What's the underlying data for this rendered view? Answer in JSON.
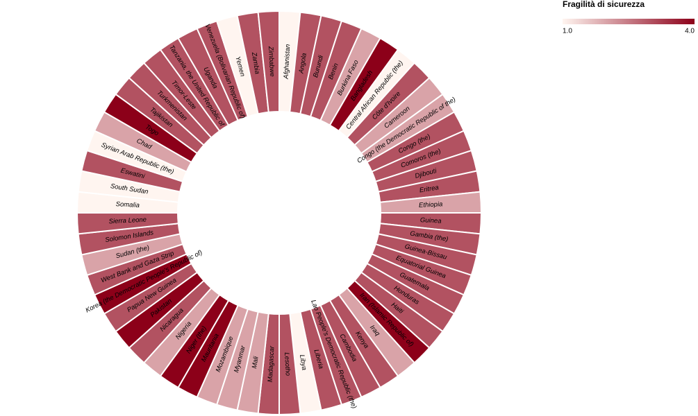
{
  "chart_data": {
    "type": "donut",
    "legend_title": "Fragilità di sicurezza",
    "clim": [
      1,
      4
    ],
    "cticks": [
      {
        "value": 1,
        "label": "1.0"
      },
      {
        "value": 4,
        "label": "4.0"
      }
    ],
    "color_range": [
      "#fff5f0",
      "#8c0019"
    ],
    "categories": [
      "Afghanistan",
      "Angola",
      "Burundi",
      "Benin",
      "Burkina Faso",
      "Bangladesh",
      "Central African Republic (the)",
      "Côte d'Ivoire",
      "Cameroon",
      "Congo (the Democratic Republic of the)",
      "Congo (the)",
      "Comoros (the)",
      "Djibouti",
      "Eritrea",
      "Ethiopia",
      "Guinea",
      "Gambia (the)",
      "Guinea-Bissau",
      "Equatorial Guinea",
      "Guatemala",
      "Honduras",
      "Haiti",
      "Iran (Islamic Republic of)",
      "Iraq",
      "Kenya",
      "Cambodia",
      "Lao People's Democratic Republic (the)",
      "Liberia",
      "Libya",
      "Lesotho",
      "Madagascar",
      "Mali",
      "Myanmar",
      "Mozambique",
      "Mauritania",
      "Niger (the)",
      "Nigeria",
      "Nicaragua",
      "Pakistan",
      "Papua New Guinea",
      "Korea (the Democratic People's Republic of)",
      "West Bank and Gaza Strip",
      "Sudan (the)",
      "Solomon Islands",
      "Sierra Leone",
      "Somalia",
      "South Sudan",
      "Eswatini",
      "Syrian Arab Republic (the)",
      "Chad",
      "Togo",
      "Tajikistan",
      "Turkmenistan",
      "Timor-Leste",
      "Tanzania, the United Republic of",
      "Uganda",
      "Venezuela (Bolivarian Republic of)",
      "Yemen",
      "Zambia",
      "Zimbabwe"
    ],
    "values": [
      1,
      3,
      3,
      3,
      2,
      4,
      1,
      3,
      2,
      2,
      3,
      3,
      3,
      3,
      2,
      3,
      3,
      3,
      3,
      3,
      3,
      3,
      4,
      2,
      3,
      3,
      3,
      3,
      1,
      3,
      3,
      2,
      2,
      2,
      4,
      4,
      2,
      3,
      4,
      3,
      4,
      3,
      2,
      3,
      3,
      1,
      1,
      3,
      1,
      2,
      4,
      3,
      3,
      3,
      3,
      3,
      3,
      1,
      3,
      3
    ]
  }
}
